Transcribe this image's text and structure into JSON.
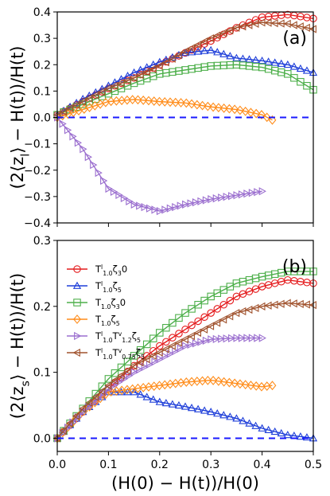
{
  "chart_data": [
    {
      "panel_label": "(a)",
      "type": "line",
      "ylabel": "(2⟨z_l⟩ − H(t))/H(t)",
      "xlim": [
        0,
        0.5
      ],
      "ylim": [
        -0.4,
        0.4
      ],
      "xticks": [
        "0.0",
        "0.1",
        "0.2",
        "0.3",
        "0.4",
        "0.5"
      ],
      "yticks": [
        "−0.4",
        "−0.3",
        "−0.2",
        "−0.1",
        "0.0",
        "0.1",
        "0.2",
        "0.3",
        "0.4"
      ],
      "ytick_values": [
        -0.4,
        -0.3,
        -0.2,
        -0.1,
        0,
        0.1,
        0.2,
        0.3,
        0.4
      ],
      "reference_line": 0,
      "series": [
        {
          "color": "#e41a1c",
          "marker": "circle",
          "x": [
            0.0,
            0.05,
            0.1,
            0.15,
            0.2,
            0.25,
            0.3,
            0.35,
            0.4,
            0.45,
            0.5
          ],
          "y": [
            0.01,
            0.06,
            0.11,
            0.15,
            0.2,
            0.245,
            0.29,
            0.34,
            0.38,
            0.39,
            0.375
          ]
        },
        {
          "color": "#1f3fd9",
          "marker": "triangle-up",
          "x": [
            0.0,
            0.05,
            0.1,
            0.15,
            0.2,
            0.25,
            0.3,
            0.35,
            0.4,
            0.45,
            0.5
          ],
          "y": [
            0.01,
            0.07,
            0.12,
            0.17,
            0.21,
            0.245,
            0.255,
            0.225,
            0.215,
            0.2,
            0.17
          ]
        },
        {
          "color": "#4daf4a",
          "marker": "square",
          "x": [
            0.0,
            0.05,
            0.1,
            0.15,
            0.2,
            0.25,
            0.3,
            0.35,
            0.4,
            0.45,
            0.5
          ],
          "y": [
            0.01,
            0.05,
            0.09,
            0.13,
            0.165,
            0.18,
            0.195,
            0.2,
            0.19,
            0.165,
            0.105
          ]
        },
        {
          "color": "#ff8c1a",
          "marker": "diamond",
          "x": [
            0.0,
            0.05,
            0.1,
            0.15,
            0.2,
            0.25,
            0.3,
            0.35,
            0.4,
            0.42
          ],
          "y": [
            0.0,
            0.03,
            0.06,
            0.068,
            0.06,
            0.055,
            0.04,
            0.03,
            0.01,
            -0.01
          ]
        },
        {
          "color": "#9b6fcf",
          "marker": "triangle-right",
          "x": [
            0.0,
            0.05,
            0.1,
            0.15,
            0.2,
            0.25,
            0.3,
            0.35,
            0.4
          ],
          "y": [
            0.0,
            -0.12,
            -0.27,
            -0.33,
            -0.355,
            -0.33,
            -0.31,
            -0.295,
            -0.28
          ]
        },
        {
          "color": "#a0522d",
          "marker": "triangle-left",
          "x": [
            0.0,
            0.05,
            0.1,
            0.15,
            0.2,
            0.25,
            0.3,
            0.35,
            0.4,
            0.45,
            0.5
          ],
          "y": [
            0.01,
            0.06,
            0.11,
            0.15,
            0.195,
            0.25,
            0.3,
            0.34,
            0.36,
            0.355,
            0.335
          ]
        }
      ]
    },
    {
      "panel_label": "(b)",
      "type": "line",
      "ylabel": "(2⟨z_s⟩ − H(t))/H(t)",
      "xlabel": "(H(0) − H(t))/H(0)",
      "xlim": [
        0,
        0.5
      ],
      "ylim": [
        -0.02,
        0.3
      ],
      "xticks": [
        "0.0",
        "0.1",
        "0.2",
        "0.3",
        "0.4",
        "0.5"
      ],
      "yticks": [
        "0.0",
        "0.1",
        "0.2",
        "0.3"
      ],
      "ytick_values": [
        0,
        0.1,
        0.2,
        0.3
      ],
      "reference_line": 0,
      "legend_position": "upper-left",
      "series": [
        {
          "name": "T^l_{1.0}ζ_30",
          "color": "#e41a1c",
          "marker": "circle",
          "x": [
            0.0,
            0.05,
            0.1,
            0.15,
            0.2,
            0.25,
            0.3,
            0.35,
            0.4,
            0.45,
            0.5
          ],
          "y": [
            0.0,
            0.04,
            0.075,
            0.11,
            0.14,
            0.165,
            0.19,
            0.215,
            0.23,
            0.24,
            0.235
          ]
        },
        {
          "name": "T^l_{1.0}ζ_5",
          "color": "#1f3fd9",
          "marker": "triangle-up",
          "x": [
            0.0,
            0.05,
            0.1,
            0.15,
            0.2,
            0.25,
            0.3,
            0.35,
            0.4,
            0.45,
            0.5
          ],
          "y": [
            0.0,
            0.04,
            0.07,
            0.07,
            0.055,
            0.048,
            0.04,
            0.03,
            0.015,
            0.005,
            0.0
          ]
        },
        {
          "name": "T_{1.0}ζ_30",
          "color": "#4daf4a",
          "marker": "square",
          "x": [
            0.0,
            0.05,
            0.1,
            0.15,
            0.2,
            0.25,
            0.3,
            0.35,
            0.4,
            0.45,
            0.5
          ],
          "y": [
            0.0,
            0.045,
            0.09,
            0.125,
            0.16,
            0.19,
            0.215,
            0.235,
            0.245,
            0.253,
            0.253
          ]
        },
        {
          "name": "T_{1.0}ζ_5",
          "color": "#ff8c1a",
          "marker": "diamond",
          "x": [
            0.0,
            0.05,
            0.1,
            0.15,
            0.2,
            0.25,
            0.3,
            0.35,
            0.4,
            0.42
          ],
          "y": [
            0.0,
            0.04,
            0.07,
            0.075,
            0.08,
            0.085,
            0.088,
            0.083,
            0.078,
            0.08
          ]
        },
        {
          "name": "T^l_{1.0}T^v_{1.2}ζ_5",
          "color": "#9b6fcf",
          "marker": "triangle-right",
          "x": [
            0.0,
            0.05,
            0.1,
            0.15,
            0.2,
            0.25,
            0.3,
            0.35,
            0.4
          ],
          "y": [
            0.0,
            0.04,
            0.075,
            0.1,
            0.12,
            0.14,
            0.15,
            0.152,
            0.152
          ]
        },
        {
          "name": "T^l_{1.0}T^v_{0.75}ζ_5",
          "color": "#a0522d",
          "marker": "triangle-left",
          "x": [
            0.0,
            0.05,
            0.1,
            0.15,
            0.2,
            0.25,
            0.3,
            0.35,
            0.4,
            0.45,
            0.5
          ],
          "y": [
            0.0,
            0.045,
            0.08,
            0.11,
            0.13,
            0.15,
            0.17,
            0.19,
            0.2,
            0.205,
            0.202
          ]
        }
      ]
    }
  ]
}
